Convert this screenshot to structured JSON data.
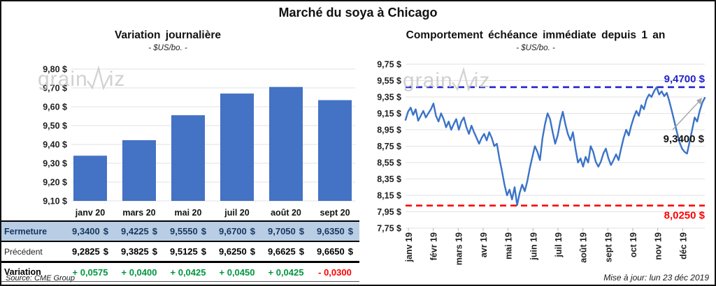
{
  "window": {
    "title": "Marché du soya à Chicago"
  },
  "colors": {
    "bar": "#4472c4",
    "line": "#3b73c8",
    "resistance": "#2222cc",
    "support": "#ff0000",
    "positive": "#009640",
    "negative": "#ff0000",
    "grid": "#e2e2e2",
    "tick": "#b0b0b0",
    "arrow": "#a6a6a6",
    "fermeture_bg": "#b9cde5",
    "fermeture_text": "#17375e"
  },
  "watermark": {
    "part1": "grain",
    "part2": "iz"
  },
  "chart_data": [
    {
      "type": "bar",
      "title": "Variation journalière",
      "subtitle": "- $US/bo. -",
      "categories": [
        "janv 20",
        "mars 20",
        "mai 20",
        "juil 20",
        "août 20",
        "sept 20"
      ],
      "values": [
        9.34,
        9.4225,
        9.555,
        9.67,
        9.705,
        9.635
      ],
      "ylim": [
        9.1,
        9.8
      ],
      "ytick_values": [
        9.8,
        9.7,
        9.6,
        9.5,
        9.4,
        9.3,
        9.2,
        9.1
      ],
      "ytick_labels": [
        "9,80 $",
        "9,70 $",
        "9,60 $",
        "9,50 $",
        "9,40 $",
        "9,30 $",
        "9,20 $",
        "9,10 $"
      ],
      "grid": true,
      "legend": "none"
    },
    {
      "type": "line",
      "title": "Comportement échéance immédiate depuis 1 an",
      "subtitle": "- $US/bo. -",
      "x_labels": [
        "janv 19",
        "févr 19",
        "mars 19",
        "avr 19",
        "mai 19",
        "juin 19",
        "juil 19",
        "août 19",
        "sept 19",
        "oct 19",
        "nov 19",
        "déc 19"
      ],
      "values": [
        9.07,
        9.17,
        9.22,
        9.13,
        9.2,
        9.06,
        9.12,
        9.18,
        9.1,
        9.15,
        9.2,
        9.27,
        9.12,
        9.05,
        9.15,
        9.08,
        8.98,
        9.05,
        8.95,
        9.02,
        9.08,
        8.95,
        9.05,
        9.1,
        8.98,
        8.9,
        9.0,
        8.92,
        8.85,
        8.78,
        8.85,
        8.9,
        8.82,
        8.92,
        8.85,
        8.75,
        8.78,
        8.6,
        8.45,
        8.28,
        8.15,
        8.22,
        8.1,
        8.25,
        8.03,
        8.18,
        8.28,
        8.2,
        8.32,
        8.48,
        8.62,
        8.75,
        8.68,
        8.58,
        8.85,
        9.02,
        9.15,
        9.08,
        8.92,
        8.78,
        8.88,
        9.05,
        9.17,
        9.02,
        8.9,
        8.82,
        8.92,
        8.72,
        8.55,
        8.6,
        8.5,
        8.62,
        8.55,
        8.75,
        8.68,
        8.56,
        8.5,
        8.56,
        8.66,
        8.72,
        8.6,
        8.52,
        8.58,
        8.65,
        8.58,
        8.72,
        8.85,
        8.95,
        8.88,
        9.0,
        9.1,
        9.18,
        9.12,
        9.25,
        9.2,
        9.32,
        9.38,
        9.35,
        9.42,
        9.47,
        9.38,
        9.42,
        9.36,
        9.4,
        9.3,
        9.18,
        9.05,
        8.92,
        8.8,
        8.72,
        8.68,
        8.66,
        8.8,
        8.95,
        9.1,
        9.05,
        9.18,
        9.28,
        9.34
      ],
      "ylim": [
        7.75,
        9.75
      ],
      "ytick_values": [
        9.75,
        9.55,
        9.35,
        9.15,
        8.95,
        8.75,
        8.55,
        8.35,
        8.15,
        7.95,
        7.75
      ],
      "ytick_labels": [
        "9,75 $",
        "9,55 $",
        "9,35 $",
        "9,15 $",
        "8,95 $",
        "8,75 $",
        "8,55 $",
        "8,35 $",
        "8,15 $",
        "7,95 $",
        "7,75 $"
      ],
      "hlines": [
        {
          "value": 9.47,
          "label": "9,4700 $",
          "role": "resistance"
        },
        {
          "value": 8.025,
          "label": "8,0250 $",
          "role": "support"
        }
      ],
      "last_value_label": "9,3400 $",
      "grid": true,
      "legend": "none"
    }
  ],
  "table": {
    "columns": [
      "janv 20",
      "mars 20",
      "mai 20",
      "juil 20",
      "août 20",
      "sept 20"
    ],
    "rows": [
      {
        "id": "fermeture",
        "label": "Fermeture",
        "suffix": "$",
        "values": [
          "9,3400",
          "9,4225",
          "9,5550",
          "9,6700",
          "9,7050",
          "9,6350"
        ]
      },
      {
        "id": "precedent",
        "label": "Précédent",
        "suffix": "$",
        "values": [
          "9,2825",
          "9,3825",
          "9,5125",
          "9,6250",
          "9,6625",
          "9,6650"
        ]
      },
      {
        "id": "variation",
        "label": "Variation",
        "suffix": "",
        "values": [
          "+ 0,0575",
          "+ 0,0400",
          "+ 0,0425",
          "+ 0,0450",
          "+ 0,0425",
          "- 0,0300"
        ],
        "signs": [
          "pos",
          "pos",
          "pos",
          "pos",
          "pos",
          "neg"
        ]
      }
    ]
  },
  "footer": {
    "source": "Source: CME Group",
    "updated": "Mise à jour: lun 23 déc 2019"
  }
}
